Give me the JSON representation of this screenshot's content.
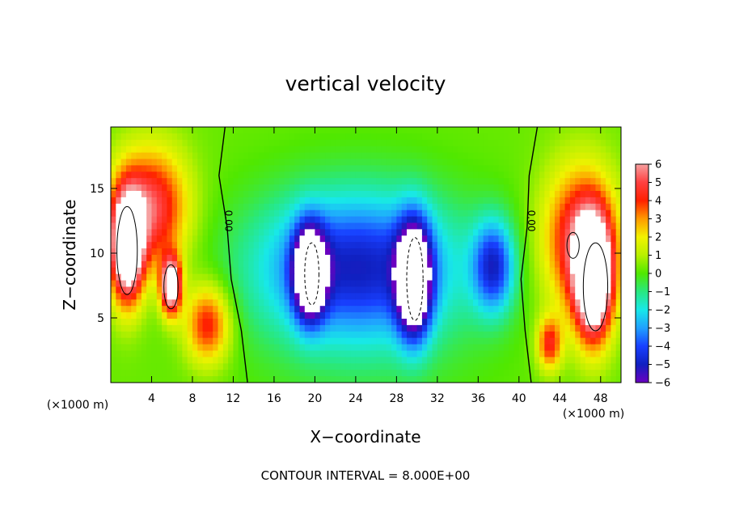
{
  "chart_data": {
    "type": "heatmap",
    "title": "vertical velocity",
    "xlabel": "X−coordinate",
    "ylabel": "Z−coordinate",
    "x_units": "(×1000 m)",
    "z_units": "(×1000 m)",
    "xlim": [
      0,
      50
    ],
    "ylim": [
      0,
      19.75
    ],
    "x_ticks": [
      4,
      8,
      12,
      16,
      20,
      24,
      28,
      32,
      36,
      40,
      44,
      48
    ],
    "y_ticks": [
      5,
      10,
      15
    ],
    "colorbar": {
      "ticks": [
        "6",
        "5",
        "4",
        "3",
        "2",
        "1",
        "0",
        "−1",
        "−2",
        "−3",
        "−4",
        "−5",
        "−6"
      ],
      "range": [
        -6,
        6
      ],
      "colors": {
        "6": "#f6a0a0",
        "5": "#ff4040",
        "4": "#ff2000",
        "3": "#ff9a00",
        "2": "#f2f200",
        "1": "#b8f000",
        "0": "#50e800",
        "-1": "#28e880",
        "-2": "#18e8e8",
        "-3": "#20a0ff",
        "-4": "#1840ff",
        "-5": "#1020c0",
        "-6": "#6a00c0"
      }
    },
    "contour_labels": [
      "0.00",
      "0.00"
    ],
    "contour_interval_text": "CONTOUR INTERVAL = 8.000E+00",
    "features": [
      {
        "kind": "updraft-max",
        "x": 1.6,
        "z": 10.5,
        "w": 9.0,
        "rx": 1.6,
        "rz": 4.2
      },
      {
        "kind": "updraft-max",
        "x": 5.9,
        "z": 7.5,
        "w": 8.0,
        "rx": 1.0,
        "rz": 2.2
      },
      {
        "kind": "updraft",
        "x": 4.0,
        "z": 13.5,
        "w": 5.0,
        "rx": 3.5,
        "rz": 4.5
      },
      {
        "kind": "updraft",
        "x": 9.5,
        "z": 4.5,
        "w": 4.2,
        "rx": 2.2,
        "rz": 3.0
      },
      {
        "kind": "downdraft-max",
        "x": 19.5,
        "z": 8.5,
        "w": -9.0,
        "rx": 1.5,
        "rz": 3.3
      },
      {
        "kind": "downdraft-max",
        "x": 29.7,
        "z": 8.0,
        "w": -9.0,
        "rx": 1.6,
        "rz": 4.2
      },
      {
        "kind": "downdraft",
        "x": 24.0,
        "z": 9.0,
        "w": -4.6,
        "rx": 9.5,
        "rz": 5.5
      },
      {
        "kind": "downdraft",
        "x": 37.5,
        "z": 9.0,
        "w": -4.5,
        "rx": 2.0,
        "rz": 3.5
      },
      {
        "kind": "updraft-max",
        "x": 47.3,
        "z": 8.0,
        "w": 9.0,
        "rx": 1.8,
        "rz": 4.6
      },
      {
        "kind": "updraft",
        "x": 46.0,
        "z": 11.0,
        "w": 5.0,
        "rx": 3.5,
        "rz": 5.5
      },
      {
        "kind": "updraft",
        "x": 43.0,
        "z": 3.0,
        "w": 4.0,
        "rx": 1.2,
        "rz": 2.0
      }
    ]
  }
}
